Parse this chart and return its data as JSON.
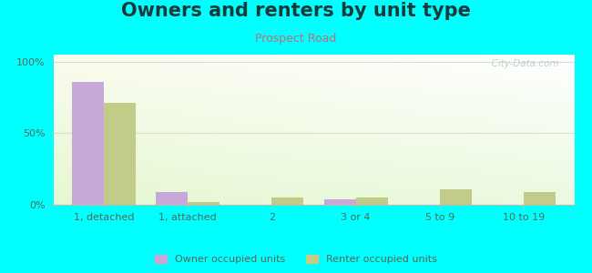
{
  "title": "Owners and renters by unit type",
  "subtitle": "Prospect Road",
  "categories": [
    "1, detached",
    "1, attached",
    "2",
    "3 or 4",
    "5 to 9",
    "10 to 19"
  ],
  "owner_values": [
    86,
    9,
    0,
    4,
    0,
    0
  ],
  "renter_values": [
    71,
    2,
    5,
    5,
    11,
    9
  ],
  "owner_color": "#c8a8d8",
  "renter_color": "#c0cc88",
  "background_color": "#00ffff",
  "title_color": "#1a3a3a",
  "subtitle_color": "#cc6677",
  "title_fontsize": 15,
  "subtitle_fontsize": 9,
  "ylabel_ticks": [
    "0%",
    "50%",
    "100%"
  ],
  "ytick_values": [
    0,
    50,
    100
  ],
  "ylim": [
    0,
    105
  ],
  "bar_width": 0.38,
  "legend_owner": "Owner occupied units",
  "legend_renter": "Renter occupied units",
  "watermark": "  City-Data.com",
  "watermark_color": "#aacccc",
  "grid_color": "#ddddcc",
  "tick_color": "#556655",
  "spine_color": "#bbbbaa"
}
